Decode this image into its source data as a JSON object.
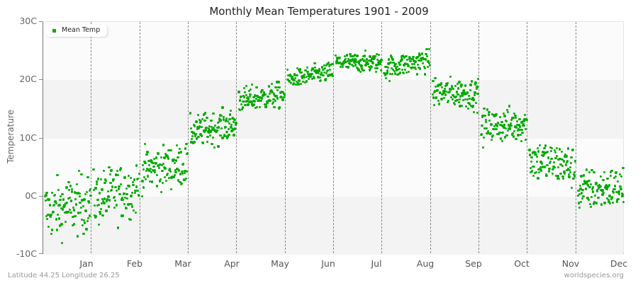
{
  "title": "Monthly Mean Temperatures 1901 - 2009",
  "footer": {
    "location": "Latitude 44.25 Longitude 26.25",
    "source": "worldspecies.org"
  },
  "legend": {
    "label": "Mean Temp",
    "color": "#00b000"
  },
  "colors": {
    "dot": "#00aa00",
    "band_light": "#fbfbfb",
    "band_dark": "#f3f3f3",
    "grid": "#888888"
  },
  "axes": {
    "ylabel": "Temperature",
    "yticks": [
      "30C",
      "20C",
      "10C",
      "0C",
      "-10C"
    ],
    "xticks": [
      "Jan",
      "Feb",
      "Mar",
      "Apr",
      "May",
      "Jun",
      "Jul",
      "Aug",
      "Sep",
      "Oct",
      "Nov",
      "Dec"
    ]
  },
  "chart_data": {
    "type": "scatter",
    "title": "Monthly Mean Temperatures 1901 - 2009",
    "xlabel": "",
    "ylabel": "Temperature",
    "ylim": [
      -10,
      30
    ],
    "yticks": [
      -10,
      0,
      10,
      20,
      30
    ],
    "ytick_labels": [
      "-10C",
      "0C",
      "10C",
      "20C",
      "30C"
    ],
    "categories": [
      "Jan",
      "Feb",
      "Mar",
      "Apr",
      "May",
      "Jun",
      "Jul",
      "Aug",
      "Sep",
      "Oct",
      "Nov",
      "Dec"
    ],
    "grid": {
      "vertical_dashed_month_separators": true,
      "horizontal_bands": true
    },
    "legend": {
      "entries": [
        "Mean Temp"
      ],
      "position": "top-left"
    },
    "series": [
      {
        "name": "Mean Temp",
        "points_per_month": 109,
        "monthly_stats": [
          {
            "month": "Jan",
            "start": -2.5,
            "end": -1.0,
            "spread": 2.8,
            "min": -8.0,
            "max": 4.8
          },
          {
            "month": "Feb",
            "start": -0.5,
            "end": 1.5,
            "spread": 2.6,
            "min": -7.2,
            "max": 5.4
          },
          {
            "month": "Mar",
            "start": 4.5,
            "end": 5.5,
            "spread": 2.0,
            "min": 0.0,
            "max": 9.8
          },
          {
            "month": "Apr",
            "start": 11.0,
            "end": 12.5,
            "spread": 1.5,
            "min": 8.0,
            "max": 15.3
          },
          {
            "month": "May",
            "start": 16.5,
            "end": 17.5,
            "spread": 1.2,
            "min": 12.8,
            "max": 20.3
          },
          {
            "month": "Jun",
            "start": 20.0,
            "end": 21.5,
            "spread": 0.9,
            "min": 19.2,
            "max": 23.3
          },
          {
            "month": "Jul",
            "start": 23.0,
            "end": 23.0,
            "spread": 0.9,
            "min": 21.0,
            "max": 25.7
          },
          {
            "month": "Aug",
            "start": 22.0,
            "end": 23.5,
            "spread": 1.1,
            "min": 19.0,
            "max": 25.3
          },
          {
            "month": "Sep",
            "start": 18.0,
            "end": 17.5,
            "spread": 1.4,
            "min": 14.3,
            "max": 22.0
          },
          {
            "month": "Oct",
            "start": 12.0,
            "end": 12.5,
            "spread": 1.6,
            "min": 7.8,
            "max": 16.2
          },
          {
            "month": "Nov",
            "start": 6.5,
            "end": 5.0,
            "spread": 2.0,
            "min": 0.8,
            "max": 11.3
          },
          {
            "month": "Dec",
            "start": 1.0,
            "end": 1.5,
            "spread": 2.0,
            "min": -5.5,
            "max": 6.4
          }
        ]
      }
    ]
  }
}
